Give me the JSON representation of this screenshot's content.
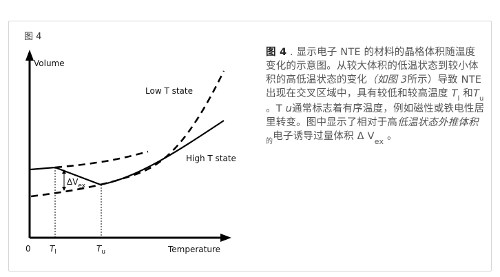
{
  "figure_label": "图 4",
  "diagram": {
    "y_axis_label": "Volume",
    "x_axis_label": "Temperature",
    "origin_label": "0",
    "low_state_label": "Low T state",
    "high_state_label": "High T state",
    "tick_lower": {
      "main": "T",
      "sub": "l"
    },
    "tick_upper": {
      "main": "T",
      "sub": "u"
    },
    "delta_label": {
      "main": "ΔV",
      "sub": "ex"
    }
  },
  "caption": {
    "lead": "图 4",
    "p1": " . 显示电子 NTE 的材料的晶格体积随温度变化的示意图。从较大体积的低温状态到较小体积的高低温状态的变化",
    "p2": "（如图",
    "p3": " 3",
    "p4": "所示）导致 NTE 出现在交叉区域中，具有较低和较高温度",
    "p5": " T",
    "p6": "l",
    "p7": " 和",
    "p8": "T",
    "p9": "u",
    "p10": " 。T ",
    "p11": "u",
    "p12": "通常标志着有序温度，例如磁性或铁电性居里转变。图中显示了相对于高",
    "p13": "低温状态外推体积",
    "p14": "的",
    "p15": "电子诱导过量体积 Δ V",
    "p16": "ex",
    "p17": " 。"
  }
}
